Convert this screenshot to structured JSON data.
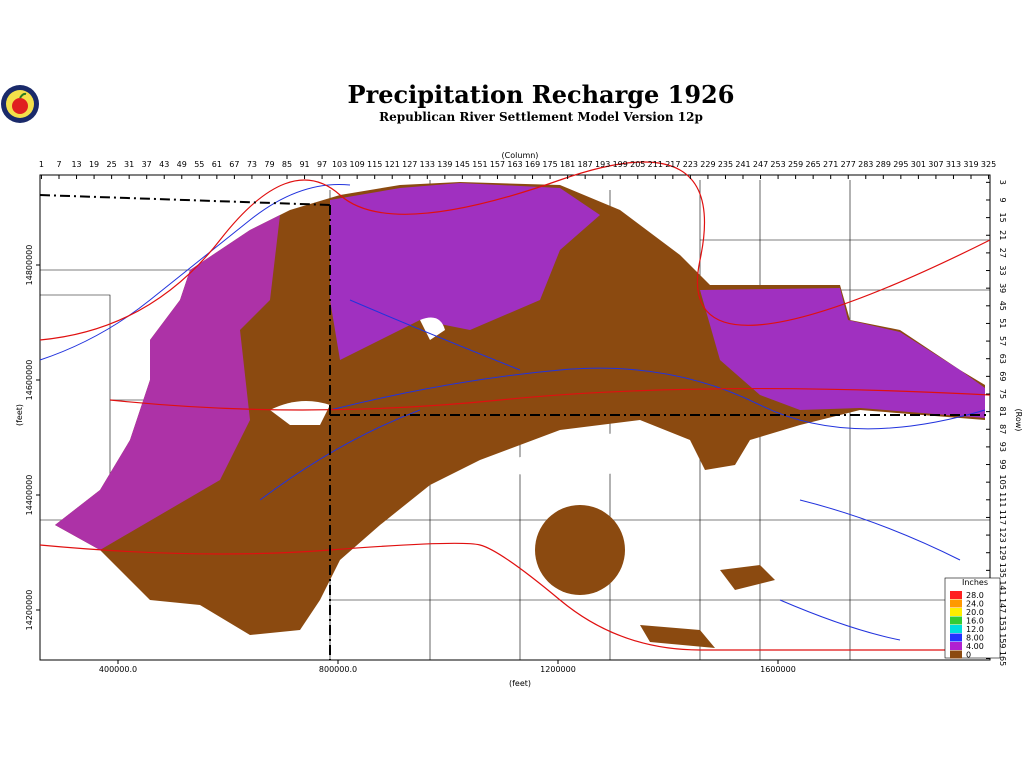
{
  "header": {
    "title": "Precipitation Recharge 1926",
    "subtitle": "Republican River Settlement Model Version 12p"
  },
  "axes": {
    "column_label": "(Column)",
    "row_label": "(Row)",
    "x_label": "(feet)",
    "y_label": "(feet)",
    "columns": [
      1,
      7,
      13,
      19,
      25,
      31,
      37,
      43,
      49,
      55,
      61,
      67,
      73,
      79,
      85,
      91,
      97,
      103,
      109,
      115,
      121,
      127,
      133,
      139,
      145,
      151,
      157,
      163,
      169,
      175,
      181,
      187,
      193,
      199,
      205,
      211,
      217,
      223,
      229,
      235,
      241,
      247,
      253,
      259,
      265,
      271,
      277,
      283,
      289,
      295,
      301,
      307,
      313,
      319,
      325
    ],
    "rows": [
      3,
      9,
      15,
      21,
      27,
      33,
      39,
      45,
      51,
      57,
      63,
      69,
      75,
      81,
      87,
      93,
      99,
      105,
      111,
      117,
      123,
      129,
      135,
      141,
      147,
      153,
      159,
      165
    ],
    "xticks": [
      {
        "value": 400000,
        "label": "400000.0"
      },
      {
        "value": 800000,
        "label": "800000.0"
      },
      1200000,
      1600000
    ],
    "yticks": [
      14800000,
      14600000,
      14400000,
      14200000
    ]
  },
  "legend": {
    "title": "Inches",
    "items": [
      {
        "value": 28,
        "label": "28.0",
        "color": "#ff2020"
      },
      {
        "value": 24,
        "label": "24.0",
        "color": "#ff9900"
      },
      {
        "value": 20,
        "label": "20.0",
        "color": "#ffee00"
      },
      {
        "value": 16,
        "label": "16.0",
        "color": "#33cc33"
      },
      {
        "value": 12,
        "label": "12.0",
        "color": "#00dddd"
      },
      {
        "value": 8,
        "label": "8.00",
        "color": "#2233ff"
      },
      {
        "value": 4,
        "label": "4.00",
        "color": "#b020d0"
      },
      {
        "value": 0,
        "label": "0",
        "color": "#8b4a10"
      }
    ]
  }
}
